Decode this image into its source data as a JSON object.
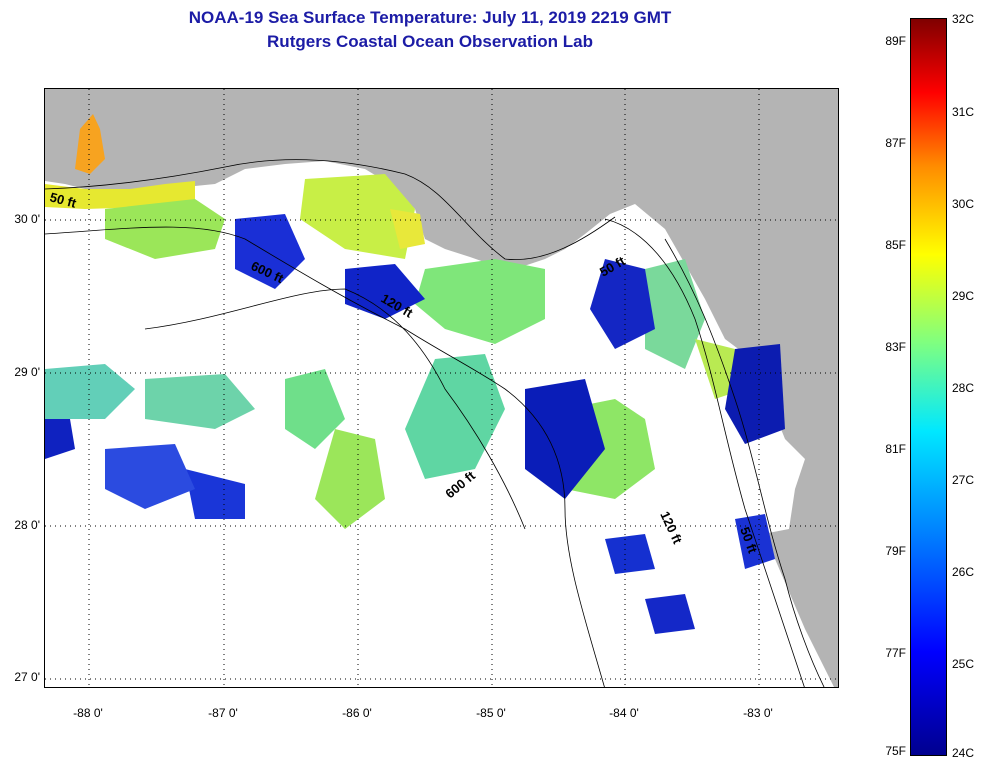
{
  "header": {
    "title": "NOAA-19 Sea Surface Temperature:  July 11, 2019 2219 GMT",
    "subtitle": "Rutgers Coastal Ocean Observation Lab"
  },
  "axes": {
    "lat_labels": [
      "30 0'",
      "29 0'",
      "28 0'",
      "27 0'"
    ],
    "lon_labels": [
      "-88 0'",
      "-87 0'",
      "-86 0'",
      "-85 0'",
      "-84 0'",
      "-83 0'"
    ],
    "lat_values": [
      30,
      29,
      28,
      27
    ],
    "lon_values": [
      -88,
      -87,
      -86,
      -85,
      -84,
      -83
    ]
  },
  "colorbar": {
    "fahrenheit_labels": [
      "89F",
      "87F",
      "85F",
      "83F",
      "81F",
      "79F",
      "77F",
      "75F"
    ],
    "celsius_labels": [
      "32C",
      "31C",
      "30C",
      "29C",
      "28C",
      "27C",
      "26C",
      "25C",
      "24C"
    ],
    "range_c": [
      24,
      32
    ],
    "colors": [
      "#00008f",
      "#0000ff",
      "#0070ff",
      "#00e8ff",
      "#7fff80",
      "#ffff00",
      "#ff8c00",
      "#ff0000",
      "#800000"
    ]
  },
  "contours": {
    "labels": [
      "50 ft",
      "600 ft",
      "120 ft",
      "50 ft",
      "600 ft",
      "120 ft",
      "50 ft"
    ]
  },
  "map": {
    "land_color": "#b4b4b4",
    "no_data_color": "#ffffff"
  }
}
